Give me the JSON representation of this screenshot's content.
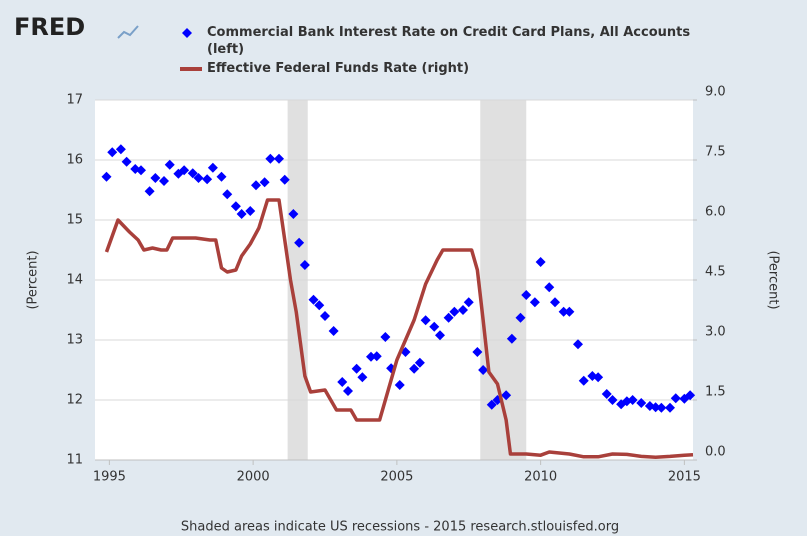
{
  "chart_data": {
    "type": "combo",
    "logo": "FRED",
    "footer": "Shaded areas indicate US recessions - 2015 research.stlouisfed.org",
    "y_label": "(Percent)",
    "y2_label": "(Percent)",
    "xlim": [
      1994.5,
      2015.3
    ],
    "xticks": [
      1995,
      2000,
      2005,
      2010,
      2015
    ],
    "ylim": [
      11,
      17
    ],
    "yticks": [
      11,
      12,
      13,
      14,
      15,
      16,
      17
    ],
    "y2lim": [
      0,
      9
    ],
    "y2ticks": [
      {
        "value": 0,
        "label": "0.0"
      },
      1.5,
      {
        "value": 3,
        "label": "3.0"
      },
      4.5,
      {
        "value": 6,
        "label": "6.0"
      },
      7.5,
      {
        "value": 9,
        "label": "9.0"
      }
    ],
    "grid": true,
    "recessions": [
      [
        2001.2,
        2001.9
      ],
      [
        2007.9,
        2009.5
      ]
    ],
    "recession_color": "#e0e0e0",
    "series": [
      {
        "name": "Commercial Bank Interest Rate on Credit Card Plans, All Accounts (left)",
        "type": "scatter",
        "color": "#0000ff",
        "x": [
          1994.9,
          1995.1,
          1995.4,
          1995.6,
          1995.9,
          1996.1,
          1996.4,
          1996.6,
          1996.9,
          1997.1,
          1997.4,
          1997.6,
          1997.9,
          1998.1,
          1998.4,
          1998.6,
          1998.9,
          1999.1,
          1999.4,
          1999.6,
          1999.9,
          2000.1,
          2000.4,
          2000.6,
          2000.9,
          2001.1,
          2001.4,
          2001.6,
          2001.8,
          2002.1,
          2002.3,
          2002.5,
          2002.8,
          2003.1,
          2003.3,
          2003.6,
          2003.8,
          2004.1,
          2004.3,
          2004.6,
          2004.8,
          2005.1,
          2005.3,
          2005.6,
          2005.8,
          2006.0,
          2006.3,
          2006.5,
          2006.8,
          2007.0,
          2007.3,
          2007.5,
          2007.8,
          2008.0,
          2008.3,
          2008.5,
          2008.8,
          2009.0,
          2009.3,
          2009.5,
          2009.8,
          2010.0,
          2010.3,
          2010.5,
          2010.8,
          2011.0,
          2011.3,
          2011.5,
          2011.8,
          2012.0,
          2012.3,
          2012.5,
          2012.8,
          2013.0,
          2013.2,
          2013.5,
          2013.8,
          2014.0,
          2014.2,
          2014.5,
          2014.7,
          2015.0,
          2015.2
        ],
        "values": [
          15.72,
          16.13,
          16.18,
          15.97,
          15.85,
          15.83,
          15.48,
          15.7,
          15.65,
          15.92,
          15.77,
          15.83,
          15.78,
          15.7,
          15.68,
          15.87,
          15.72,
          15.43,
          15.23,
          15.1,
          15.15,
          15.58,
          15.63,
          16.02,
          16.02,
          15.67,
          15.1,
          14.62,
          14.25,
          13.67,
          13.58,
          13.4,
          13.15,
          12.3,
          12.15,
          12.52,
          12.38,
          12.72,
          12.73,
          13.05,
          12.53,
          12.25,
          12.8,
          12.52,
          12.62,
          13.33,
          13.22,
          13.08,
          13.37,
          13.47,
          13.5,
          13.63,
          12.8,
          12.5,
          11.92,
          12.0,
          12.08,
          13.02,
          13.37,
          13.75,
          13.63,
          14.3,
          13.88,
          13.63,
          13.47,
          13.47,
          12.93,
          12.32,
          12.4,
          12.38,
          12.1,
          12.0,
          11.93,
          11.98,
          12.0,
          11.95,
          11.9,
          11.88,
          11.87,
          11.87,
          12.03,
          12.02,
          12.08
        ]
      },
      {
        "name": "Effective Federal Funds Rate (right)",
        "type": "line",
        "axis": "y2",
        "color": "#a9403b",
        "x": [
          1994.9,
          1995.1,
          1995.3,
          1995.5,
          1995.7,
          1996.0,
          1996.2,
          1996.5,
          1996.8,
          1997.0,
          1997.2,
          1997.5,
          1998.0,
          1998.5,
          1998.7,
          1998.9,
          1999.1,
          1999.4,
          1999.6,
          1999.9,
          2000.2,
          2000.5,
          2000.9,
          2001.1,
          2001.3,
          2001.5,
          2001.8,
          2002.0,
          2002.5,
          2002.9,
          2003.4,
          2003.6,
          2004.4,
          2004.7,
          2005.0,
          2005.3,
          2005.6,
          2006.0,
          2006.4,
          2006.6,
          2007.6,
          2007.8,
          2008.0,
          2008.2,
          2008.5,
          2008.8,
          2008.95,
          2009.5,
          2010.0,
          2010.3,
          2011.0,
          2011.5,
          2012.0,
          2012.5,
          2013.0,
          2013.5,
          2014.0,
          2014.5,
          2015.0,
          2015.3
        ],
        "values": [
          5.2,
          5.6,
          6.0,
          5.85,
          5.7,
          5.5,
          5.25,
          5.3,
          5.25,
          5.25,
          5.55,
          5.55,
          5.55,
          5.5,
          5.5,
          4.8,
          4.7,
          4.75,
          5.1,
          5.4,
          5.8,
          6.5,
          6.5,
          5.5,
          4.5,
          3.7,
          2.1,
          1.7,
          1.75,
          1.25,
          1.25,
          1.0,
          1.0,
          1.75,
          2.5,
          3.0,
          3.5,
          4.4,
          5.0,
          5.25,
          5.25,
          4.75,
          3.5,
          2.2,
          1.9,
          1.0,
          0.15,
          0.15,
          0.12,
          0.2,
          0.15,
          0.08,
          0.08,
          0.15,
          0.14,
          0.09,
          0.07,
          0.09,
          0.12,
          0.13
        ]
      }
    ]
  }
}
